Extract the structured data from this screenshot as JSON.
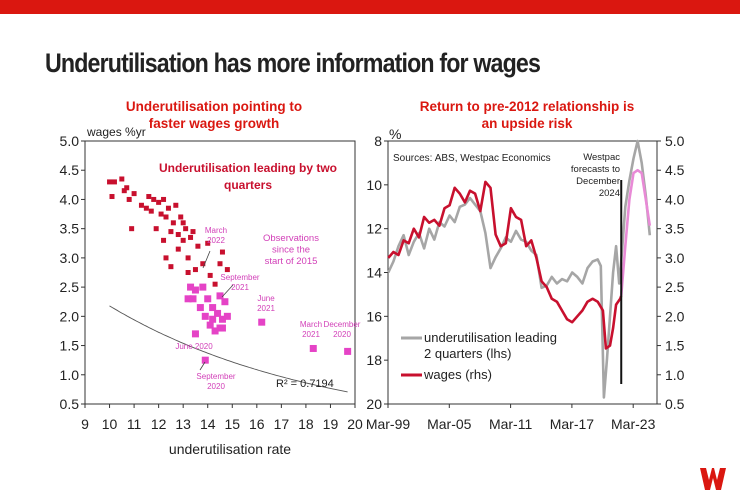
{
  "page": {
    "title": "Underutilisation has more information for wages",
    "brand_color": "#da1710",
    "logo_icon": "westpac-logo-icon"
  },
  "chart_data": [
    {
      "type": "scatter",
      "title": "Underutilisation pointing to faster wages growth",
      "subtitle": "Underutilisation leading by two quarters",
      "xlabel": "underutilisation rate",
      "ylabel": "wages %yr",
      "xlim": [
        9,
        20
      ],
      "ylim": [
        0.5,
        5.0
      ],
      "xticks": [
        "9",
        "10",
        "11",
        "12",
        "13",
        "14",
        "15",
        "16",
        "17",
        "18",
        "19",
        "20"
      ],
      "yticks": [
        "0.5",
        "1.0",
        "1.5",
        "2.0",
        "2.5",
        "3.0",
        "3.5",
        "4.0",
        "4.5",
        "5.0"
      ],
      "grid": false,
      "r_squared": "R² = 0.7194",
      "trendline": {
        "a": 6.95,
        "b": -0.116
      },
      "series": [
        {
          "name": "",
          "color": "#c8102e",
          "points": [
            [
              10.0,
              4.3
            ],
            [
              10.1,
              4.05
            ],
            [
              10.2,
              4.3
            ],
            [
              10.5,
              4.35
            ],
            [
              10.6,
              4.15
            ],
            [
              10.7,
              4.2
            ],
            [
              10.8,
              4.0
            ],
            [
              10.9,
              3.5
            ],
            [
              11.0,
              4.1
            ],
            [
              11.3,
              3.9
            ],
            [
              11.5,
              3.85
            ],
            [
              11.6,
              4.05
            ],
            [
              11.7,
              3.8
            ],
            [
              11.8,
              4.0
            ],
            [
              11.9,
              3.5
            ],
            [
              12.0,
              3.95
            ],
            [
              12.1,
              3.75
            ],
            [
              12.2,
              4.0
            ],
            [
              12.2,
              3.3
            ],
            [
              12.3,
              3.7
            ],
            [
              12.3,
              3.0
            ],
            [
              12.4,
              3.85
            ],
            [
              12.5,
              3.45
            ],
            [
              12.5,
              2.85
            ],
            [
              12.6,
              3.6
            ],
            [
              12.7,
              3.9
            ],
            [
              12.8,
              3.4
            ],
            [
              12.8,
              3.15
            ],
            [
              12.9,
              3.7
            ],
            [
              13.0,
              3.6
            ],
            [
              13.0,
              3.3
            ],
            [
              13.1,
              3.5
            ],
            [
              13.2,
              3.0
            ],
            [
              13.2,
              2.75
            ],
            [
              13.3,
              3.35
            ],
            [
              13.4,
              3.45
            ],
            [
              13.5,
              2.8
            ],
            [
              13.6,
              3.2
            ],
            [
              13.8,
              2.9
            ],
            [
              14.0,
              3.25
            ],
            [
              14.1,
              2.7
            ],
            [
              14.3,
              2.55
            ],
            [
              14.5,
              2.9
            ],
            [
              14.6,
              3.1
            ],
            [
              14.8,
              2.8
            ]
          ]
        },
        {
          "name": "",
          "color": "#e543c6",
          "points": [
            [
              13.2,
              2.3
            ],
            [
              13.3,
              2.5
            ],
            [
              13.4,
              2.3
            ],
            [
              13.5,
              2.45
            ],
            [
              13.5,
              1.7
            ],
            [
              13.7,
              2.15
            ],
            [
              13.8,
              2.5
            ],
            [
              13.9,
              2.0
            ],
            [
              13.9,
              1.25
            ],
            [
              14.0,
              2.3
            ],
            [
              14.1,
              1.85
            ],
            [
              14.2,
              1.95
            ],
            [
              14.2,
              2.15
            ],
            [
              14.3,
              1.75
            ],
            [
              14.4,
              2.05
            ],
            [
              14.5,
              1.8
            ],
            [
              14.5,
              2.35
            ],
            [
              14.6,
              1.95
            ],
            [
              14.7,
              2.25
            ],
            [
              14.8,
              2.0
            ],
            [
              14.6,
              1.8
            ],
            [
              16.2,
              1.9
            ],
            [
              18.3,
              1.45
            ],
            [
              19.7,
              1.4
            ]
          ]
        }
      ],
      "annotations": [
        {
          "text": [
            "Observations",
            "since the",
            "start of 2015"
          ]
        },
        {
          "text": [
            "March",
            "2022"
          ]
        },
        {
          "text": [
            "September",
            "2021"
          ]
        },
        {
          "text": [
            "June",
            "2021"
          ]
        },
        {
          "text": [
            "March",
            "2021"
          ]
        },
        {
          "text": [
            "December",
            "2020"
          ]
        },
        {
          "text": [
            "June 2020"
          ]
        },
        {
          "text": [
            "September",
            "2020"
          ]
        }
      ]
    },
    {
      "type": "line",
      "title": "Return to pre-2012 relationship is an upside risk",
      "source": "Sources: ABS, Westpac Economics",
      "left_unit": "%",
      "y_left": {
        "lim": [
          20,
          8
        ],
        "reversed": true,
        "ticks": [
          "8",
          "10",
          "12",
          "14",
          "16",
          "18",
          "20"
        ]
      },
      "y_right": {
        "lim": [
          0.5,
          5.0
        ],
        "ticks": [
          "0.5",
          "1.0",
          "1.5",
          "2.0",
          "2.5",
          "3.0",
          "3.5",
          "4.0",
          "4.5",
          "5.0"
        ]
      },
      "xlim": [
        1999.17,
        2025.5
      ],
      "xticks": [
        "Mar-99",
        "Mar-05",
        "Mar-11",
        "Mar-17",
        "Mar-23"
      ],
      "xtick_years": [
        1999.17,
        2005.17,
        2011.17,
        2017.17,
        2023.17
      ],
      "forecast_note": [
        "Westpac",
        "forecasts to",
        "December",
        "2024"
      ],
      "forecast_start": 2022.0,
      "series": [
        {
          "name": "underutilisation leading 2 quarters (lhs)",
          "axis": "left",
          "color": "#a6a6a6",
          "x": [
            1999.2,
            1999.7,
            2000.2,
            2000.7,
            2001.2,
            2001.7,
            2002.2,
            2002.7,
            2003.2,
            2003.7,
            2004.2,
            2004.7,
            2005.2,
            2005.7,
            2006.2,
            2006.7,
            2007.2,
            2007.7,
            2008.2,
            2008.7,
            2009.2,
            2009.7,
            2010.2,
            2010.7,
            2011.2,
            2011.7,
            2012.2,
            2012.7,
            2013.2,
            2013.7,
            2014.2,
            2014.7,
            2015.2,
            2015.7,
            2016.2,
            2016.7,
            2017.2,
            2017.7,
            2018.2,
            2018.7,
            2019.2,
            2019.7,
            2020.0,
            2020.3,
            2020.6,
            2020.9,
            2021.2,
            2021.5,
            2021.8,
            2022.0
          ],
          "y": [
            14.0,
            13.5,
            12.8,
            12.3,
            13.2,
            12.6,
            12.2,
            12.9,
            12.0,
            12.5,
            11.7,
            11.9,
            11.4,
            11.7,
            11.0,
            10.9,
            10.6,
            10.9,
            11.2,
            12.2,
            13.8,
            13.3,
            12.9,
            12.4,
            12.6,
            12.1,
            12.5,
            12.6,
            13.0,
            13.2,
            14.7,
            14.6,
            14.2,
            14.5,
            14.3,
            14.4,
            14.0,
            14.2,
            14.5,
            13.8,
            13.5,
            13.4,
            13.7,
            19.7,
            18.0,
            16.0,
            14.0,
            12.8,
            14.5,
            13.5
          ]
        },
        {
          "name": "wages (rhs)",
          "axis": "right",
          "color": "#c8102e",
          "x": [
            1999.2,
            1999.7,
            2000.2,
            2000.7,
            2001.2,
            2001.7,
            2002.2,
            2002.7,
            2003.2,
            2003.7,
            2004.2,
            2004.7,
            2005.2,
            2005.7,
            2006.2,
            2006.7,
            2007.2,
            2007.7,
            2008.2,
            2008.7,
            2009.2,
            2009.7,
            2010.2,
            2010.7,
            2011.2,
            2011.7,
            2012.2,
            2012.7,
            2013.2,
            2013.7,
            2014.2,
            2014.7,
            2015.2,
            2015.7,
            2016.2,
            2016.7,
            2017.2,
            2017.7,
            2018.2,
            2018.7,
            2019.2,
            2019.7,
            2020.2,
            2020.5,
            2020.9,
            2021.2,
            2021.5,
            2021.9,
            2022.0
          ],
          "y": [
            3.0,
            3.1,
            3.05,
            3.3,
            3.25,
            3.5,
            3.35,
            3.7,
            3.6,
            3.65,
            3.55,
            3.85,
            3.9,
            4.2,
            4.1,
            3.95,
            4.15,
            4.1,
            3.8,
            4.3,
            4.2,
            3.4,
            3.2,
            3.25,
            3.85,
            3.7,
            3.65,
            3.2,
            3.3,
            3.0,
            2.6,
            2.5,
            2.3,
            2.25,
            2.1,
            1.95,
            1.9,
            2.0,
            2.1,
            2.25,
            2.3,
            2.25,
            2.1,
            1.45,
            1.5,
            1.8,
            2.2,
            2.3,
            2.35
          ]
        },
        {
          "name": "",
          "axis": "left",
          "color": "#a6a6a6",
          "dashed": false,
          "x": [
            2022.0,
            2022.4,
            2022.8,
            2023.2,
            2023.6,
            2024.0,
            2024.4,
            2024.8
          ],
          "y": [
            13.5,
            11.0,
            9.8,
            8.8,
            8.0,
            9.0,
            10.5,
            12.3
          ]
        },
        {
          "name": "",
          "axis": "right",
          "color": "#e88ad6",
          "x": [
            2022.0,
            2022.4,
            2022.8,
            2023.2,
            2023.6,
            2024.0,
            2024.4,
            2024.8
          ],
          "y": [
            2.35,
            3.2,
            4.0,
            4.45,
            4.5,
            4.45,
            4.0,
            3.55
          ]
        }
      ]
    }
  ]
}
